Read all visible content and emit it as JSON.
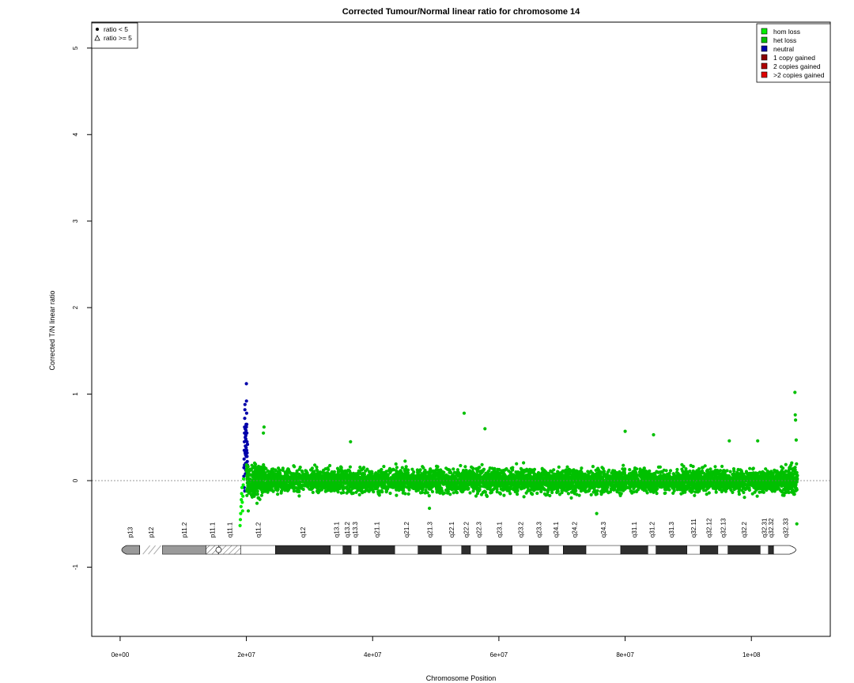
{
  "chart_data": {
    "type": "scatter",
    "title": "Corrected Tumour/Normal linear ratio for chromosome  14",
    "xlabel": "Chromosome Position",
    "ylabel": "Corrected T/N linear ratio",
    "xlim": [
      -4500000,
      112500000
    ],
    "ylim": [
      -1.8,
      5.3
    ],
    "x_ticks": [
      0,
      20000000,
      40000000,
      60000000,
      80000000,
      100000000
    ],
    "x_tick_labels": [
      "0e+00",
      "2e+07",
      "4e+07",
      "6e+07",
      "8e+07",
      "1e+08"
    ],
    "y_ticks": [
      -1,
      0,
      1,
      2,
      3,
      4,
      5
    ],
    "y_tick_labels": [
      "-1",
      "0",
      "1",
      "2",
      "3",
      "4",
      "5"
    ],
    "reference_line": 0,
    "shape_legend": [
      {
        "label": "ratio < 5",
        "shape": "dot"
      },
      {
        "label": "ratio >= 5",
        "shape": "triangle"
      }
    ],
    "color_legend": [
      {
        "label": "hom loss",
        "color": "#00ee00"
      },
      {
        "label": "het loss",
        "color": "#00c000"
      },
      {
        "label": "neutral",
        "color": "#0000aa"
      },
      {
        "label": "1 copy gained",
        "color": "#8b0000"
      },
      {
        "label": "2 copies gained",
        "color": "#b00000"
      },
      {
        "label": ">2 copies gained",
        "color": "#e00000"
      }
    ],
    "series": [
      {
        "class": "neutral",
        "color": "#0000aa",
        "points": [
          [
            19600000,
            0.05
          ],
          [
            19620000,
            0.15
          ],
          [
            19640000,
            0.25
          ],
          [
            19660000,
            0.35
          ],
          [
            19680000,
            0.45
          ],
          [
            19700000,
            0.55
          ],
          [
            19720000,
            0.62
          ],
          [
            19740000,
            0.72
          ],
          [
            19760000,
            0.82
          ],
          [
            19780000,
            0.88
          ],
          [
            19800000,
            0.6
          ],
          [
            19820000,
            0.5
          ],
          [
            19840000,
            0.4
          ],
          [
            19860000,
            0.3
          ],
          [
            19880000,
            0.2
          ],
          [
            19900000,
            0.12
          ],
          [
            19920000,
            0.48
          ],
          [
            19940000,
            0.58
          ],
          [
            19960000,
            0.38
          ],
          [
            19980000,
            0.28
          ],
          [
            20000000,
            1.12
          ],
          [
            20020000,
            0.92
          ],
          [
            20040000,
            0.78
          ],
          [
            20060000,
            0.65
          ],
          [
            20080000,
            0.55
          ],
          [
            20100000,
            0.45
          ],
          [
            20120000,
            0.32
          ],
          [
            20140000,
            0.22
          ],
          [
            20160000,
            0.18
          ],
          [
            20180000,
            0.42
          ],
          [
            19650000,
            -0.08
          ],
          [
            19750000,
            -0.12
          ],
          [
            19850000,
            0.08
          ],
          [
            19950000,
            0.65
          ],
          [
            20050000,
            0.35
          ],
          [
            19700000,
            0.18
          ],
          [
            19800000,
            0.32
          ],
          [
            19900000,
            0.52
          ],
          [
            20000000,
            0.62
          ],
          [
            20100000,
            0.28
          ]
        ]
      },
      {
        "class": "hom loss",
        "color": "#00ee00",
        "points": [
          [
            19000000,
            -0.52
          ],
          [
            19050000,
            -0.45
          ],
          [
            19100000,
            -0.38
          ],
          [
            19150000,
            -0.3
          ],
          [
            19200000,
            -0.22
          ],
          [
            19250000,
            -0.15
          ],
          [
            19300000,
            -0.08
          ],
          [
            19350000,
            -0.25
          ],
          [
            19400000,
            -0.35
          ],
          [
            19450000,
            -0.18
          ],
          [
            19500000,
            -0.05
          ],
          [
            19550000,
            0.02
          ]
        ]
      },
      {
        "class": "het loss",
        "color": "#00c000",
        "n_points": 6200,
        "x_range": [
          20000000,
          107300000
        ],
        "outliers": [
          [
            106900000,
            1.02
          ],
          [
            54500000,
            0.78
          ],
          [
            106950000,
            0.76
          ],
          [
            107000000,
            0.7
          ],
          [
            57800000,
            0.6
          ],
          [
            80000000,
            0.57
          ],
          [
            84500000,
            0.53
          ],
          [
            107100000,
            0.47
          ],
          [
            36500000,
            0.45
          ],
          [
            96500000,
            0.46
          ],
          [
            101000000,
            0.46
          ],
          [
            22800000,
            0.62
          ],
          [
            22700000,
            0.55
          ],
          [
            107200000,
            -0.5
          ],
          [
            20300000,
            -0.35
          ],
          [
            75500000,
            -0.38
          ],
          [
            49000000,
            -0.32
          ]
        ]
      }
    ],
    "ideogram": {
      "chrom_end": 107300000,
      "bands": [
        {
          "name": "p13",
          "start": 0,
          "end": 3100000,
          "stain": "gvar"
        },
        {
          "name": "p12",
          "start": 3100000,
          "end": 6700000,
          "stain": "stalk"
        },
        {
          "name": "p11.2",
          "start": 6700000,
          "end": 13600000,
          "stain": "gvar"
        },
        {
          "name": "p11.1",
          "start": 13600000,
          "end": 15600000,
          "stain": "acen"
        },
        {
          "name": "q11.1",
          "start": 15600000,
          "end": 19100000,
          "stain": "acen"
        },
        {
          "name": "q11.2",
          "start": 19100000,
          "end": 24600000,
          "stain": "gneg"
        },
        {
          "name": "q12",
          "start": 24600000,
          "end": 33300000,
          "stain": "gpos100"
        },
        {
          "name": "q13.1",
          "start": 33300000,
          "end": 35300000,
          "stain": "gneg"
        },
        {
          "name": "q13.2",
          "start": 35300000,
          "end": 36600000,
          "stain": "gpos50"
        },
        {
          "name": "q13.3",
          "start": 36600000,
          "end": 37800000,
          "stain": "gneg"
        },
        {
          "name": "q21.1",
          "start": 37800000,
          "end": 43500000,
          "stain": "gpos100"
        },
        {
          "name": "q21.2",
          "start": 43500000,
          "end": 47200000,
          "stain": "gneg"
        },
        {
          "name": "q21.3",
          "start": 47200000,
          "end": 50900000,
          "stain": "gpos100"
        },
        {
          "name": "q22.1",
          "start": 50900000,
          "end": 54100000,
          "stain": "gneg"
        },
        {
          "name": "q22.2",
          "start": 54100000,
          "end": 55500000,
          "stain": "gpos25"
        },
        {
          "name": "q22.3",
          "start": 55500000,
          "end": 58100000,
          "stain": "gneg"
        },
        {
          "name": "q23.1",
          "start": 58100000,
          "end": 62100000,
          "stain": "gpos75"
        },
        {
          "name": "q23.2",
          "start": 62100000,
          "end": 64800000,
          "stain": "gneg"
        },
        {
          "name": "q23.3",
          "start": 64800000,
          "end": 67900000,
          "stain": "gpos50"
        },
        {
          "name": "q24.1",
          "start": 67900000,
          "end": 70200000,
          "stain": "gneg"
        },
        {
          "name": "q24.2",
          "start": 70200000,
          "end": 73800000,
          "stain": "gpos50"
        },
        {
          "name": "q24.3",
          "start": 73800000,
          "end": 79300000,
          "stain": "gneg"
        },
        {
          "name": "q31.1",
          "start": 79300000,
          "end": 83600000,
          "stain": "gpos100"
        },
        {
          "name": "q31.2",
          "start": 83600000,
          "end": 84900000,
          "stain": "gneg"
        },
        {
          "name": "q31.3",
          "start": 84900000,
          "end": 89800000,
          "stain": "gpos100"
        },
        {
          "name": "q32.11",
          "start": 89800000,
          "end": 91900000,
          "stain": "gneg"
        },
        {
          "name": "q32.12",
          "start": 91900000,
          "end": 94700000,
          "stain": "gpos25"
        },
        {
          "name": "q32.13",
          "start": 94700000,
          "end": 96300000,
          "stain": "gneg"
        },
        {
          "name": "q32.2",
          "start": 96300000,
          "end": 101400000,
          "stain": "gpos50"
        },
        {
          "name": "q32.31",
          "start": 101400000,
          "end": 102700000,
          "stain": "gneg"
        },
        {
          "name": "q32.32",
          "start": 102700000,
          "end": 103500000,
          "stain": "gpos50"
        },
        {
          "name": "q32.33",
          "start": 103500000,
          "end": 107300000,
          "stain": "gneg"
        }
      ]
    }
  }
}
